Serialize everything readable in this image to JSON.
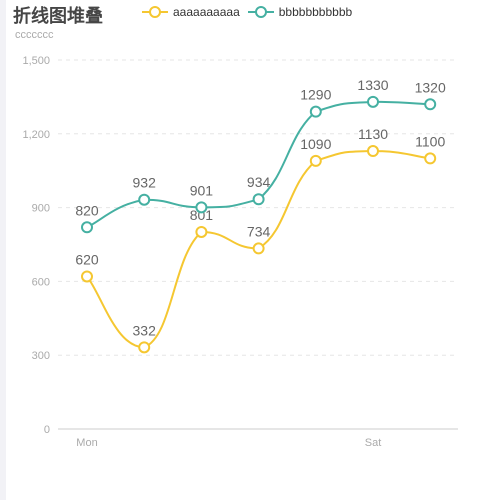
{
  "chart_data": {
    "type": "line",
    "title": "折线图堆叠",
    "ylabel": "ccccccc",
    "categories": [
      "Mon",
      "",
      "",
      "",
      "",
      "Sat",
      ""
    ],
    "ylim": [
      0,
      1500
    ],
    "yticks": [
      "0",
      "300",
      "600",
      "900",
      "1,200",
      "1,500"
    ],
    "ytick_values": [
      0,
      300,
      600,
      900,
      1200,
      1500
    ],
    "grid": true,
    "legend_position": "top",
    "smooth": true,
    "series": [
      {
        "name": "aaaaaaaaaa",
        "color": "#f5c731",
        "values": [
          620,
          332,
          801,
          734,
          1090,
          1130,
          1100
        ]
      },
      {
        "name": "bbbbbbbbbbb",
        "color": "#45b0a2",
        "values": [
          820,
          932,
          901,
          934,
          1290,
          1330,
          1320
        ]
      }
    ]
  }
}
